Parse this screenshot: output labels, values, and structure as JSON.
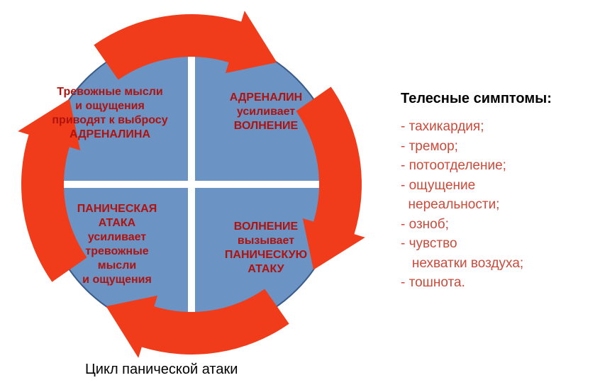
{
  "diagram": {
    "type": "cycle-quadrant",
    "caption": "Цикл панической атаки",
    "circle_color": "#6b93c4",
    "circle_stroke": "#3a5a8a",
    "cross_color": "#ffffff",
    "arrow_color": "#f03c1a",
    "text_color": "#b0130e",
    "caption_color": "#000000",
    "background": "#ffffff",
    "circle_radius": 210,
    "cross_width": 10,
    "arrow_outer_r": 240,
    "arrow_inner_r": 180,
    "quad_fontsize": 16,
    "caption_fontsize": 20,
    "quadrants": {
      "top_left": "Тревожные мысли\nи ощущения\nприводят к выбросу\nАДРЕНАЛИНА",
      "top_right": "АДРЕНАЛИН\nусиливает\nВОЛНЕНИЕ",
      "bottom_right": "ВОЛНЕНИЕ\nвызывает\nПАНИЧЕСКУЮ\nАТАКУ",
      "bottom_left": "ПАНИЧЕСКАЯ\nАТАКА\nусиливает\nтревожные\nмысли\nи ощущения"
    },
    "arrow_positions_deg": [
      90,
      0,
      270,
      180
    ],
    "arrow_sweep_deg": 70
  },
  "side": {
    "title": "Телесные симптомы:",
    "title_color": "#000000",
    "title_fontsize": 20,
    "item_color": "#cc4a3a",
    "item_fontsize": 19,
    "items": [
      "- тахикардия;",
      "- тремор;",
      "- потоотделение;",
      "- ощущение",
      "  нереальности;",
      "- озноб;",
      "- чувство",
      "   нехватки воздуха;",
      "- тошнота."
    ]
  }
}
